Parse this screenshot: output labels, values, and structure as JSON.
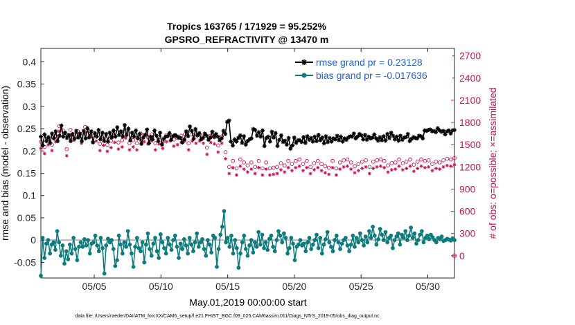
{
  "chart_data": {
    "type": "line",
    "title_line1": "Tropics 163765 / 171929 = 95.252%",
    "title_line2": "GPSRO_REFRACTIVITY @ 13470 m",
    "xlabel": "May.01,2019 00:00:00 start",
    "ylabel_left": "rmse and bias (model - observation)",
    "ylabel_right": "# of obs: o=possible; ×=assimilated",
    "footnote": "data file: /Users/raeder/DAI/ATM_forcXX/CAM6_setup/f.e21.FHIST_BGC.f09_025.CAM6assim.011/Diags_NTrS_2019-05/obs_diag_output.nc",
    "xlim": [
      1,
      32
    ],
    "ylim_left": [
      -0.085,
      0.43
    ],
    "ylim_right": [
      -300,
      2800
    ],
    "x_ticks": [
      5,
      10,
      15,
      20,
      25,
      30
    ],
    "x_tick_labels": [
      "05/05",
      "05/10",
      "05/15",
      "05/20",
      "05/25",
      "05/30"
    ],
    "y_left_ticks": [
      -0.05,
      0,
      0.05,
      0.1,
      0.15,
      0.2,
      0.25,
      0.3,
      0.35,
      0.4
    ],
    "y_left_tick_labels": [
      "-0.05",
      "0",
      "0.05",
      "0.1",
      "0.15",
      "0.2",
      "0.25",
      "0.3",
      "0.35",
      "0.4"
    ],
    "y_right_ticks": [
      0,
      300,
      600,
      900,
      1200,
      1500,
      1800,
      2100,
      2400,
      2700
    ],
    "y_right_tick_labels": [
      "0",
      "300",
      "600",
      "900",
      "1200",
      "1500",
      "1800",
      "2100",
      "2400",
      "2700"
    ],
    "zero_line": 0,
    "legend": {
      "position": "top-right",
      "entries": [
        "rmse grand pr = 0.23128",
        "bias grand pr = -0.017636"
      ]
    },
    "colors": {
      "rmse": "#000000",
      "bias": "#0b7b7b",
      "counts": "#cc1155",
      "legend_text": "#1f5fd0",
      "zero_line": "#b3b3b3"
    },
    "series": [
      {
        "name": "rmse",
        "axis": "left",
        "values": [
          0.232,
          0.212,
          0.237,
          0.222,
          0.231,
          0.218,
          0.239,
          0.228,
          0.244,
          0.222,
          0.234,
          0.257,
          0.232,
          0.241,
          0.229,
          0.236,
          0.222,
          0.238,
          0.227,
          0.245,
          0.23,
          0.239,
          0.222,
          0.245,
          0.228,
          0.251,
          0.231,
          0.244,
          0.219,
          0.24,
          0.232,
          0.247,
          0.226,
          0.241,
          0.222,
          0.238,
          0.221,
          0.241,
          0.23,
          0.246,
          0.232,
          0.253,
          0.236,
          0.244,
          0.232,
          0.258,
          0.236,
          0.25,
          0.224,
          0.241,
          0.232,
          0.246,
          0.228,
          0.238,
          0.216,
          0.23,
          0.236,
          0.248,
          0.217,
          0.232,
          0.226,
          0.246,
          0.234,
          0.222,
          0.241,
          0.214,
          0.227,
          0.232,
          0.233,
          0.24,
          0.225,
          0.233,
          0.236,
          0.233,
          0.23,
          0.229,
          0.219,
          0.226,
          0.244,
          0.233,
          0.255,
          0.245,
          0.227,
          0.249,
          0.235,
          0.24,
          0.226,
          0.229,
          0.239,
          0.234,
          0.225,
          0.23,
          0.243,
          0.232,
          0.238,
          0.232,
          0.224,
          0.228,
          0.245,
          0.238,
          0.265,
          0.268,
          0.221,
          0.212,
          0.226,
          0.221,
          0.229,
          0.235,
          0.218,
          0.233,
          0.214,
          0.222,
          0.226,
          0.228,
          0.249,
          0.247,
          0.234,
          0.242,
          0.232,
          0.246,
          0.211,
          0.229,
          0.232,
          0.221,
          0.243,
          0.23,
          0.24,
          0.211,
          0.225,
          0.235,
          0.22,
          0.223,
          0.214,
          0.229,
          0.205,
          0.212,
          0.23,
          0.218,
          0.224,
          0.224,
          0.22,
          0.231,
          0.218,
          0.233,
          0.225,
          0.229,
          0.221,
          0.232,
          0.222,
          0.236,
          0.224,
          0.23,
          0.217,
          0.233,
          0.22,
          0.229,
          0.221,
          0.228,
          0.226,
          0.234,
          0.224,
          0.232,
          0.221,
          0.228,
          0.225,
          0.23,
          0.233,
          0.232,
          0.239,
          0.228,
          0.232,
          0.238,
          0.235,
          0.226,
          0.236,
          0.225,
          0.232,
          0.228,
          0.23,
          0.237,
          0.228,
          0.223,
          0.231,
          0.224,
          0.233,
          0.223,
          0.238,
          0.229,
          0.241,
          0.234,
          0.226,
          0.232,
          0.223,
          0.234,
          0.225,
          0.23,
          0.231,
          0.238,
          0.222,
          0.227,
          0.231,
          0.229,
          0.228,
          0.234,
          0.233,
          0.228,
          0.246,
          0.245,
          0.247,
          0.248,
          0.244,
          0.245,
          0.242,
          0.251,
          0.246,
          0.243,
          0.245,
          0.237,
          0.244,
          0.246,
          0.239,
          0.246,
          0.247
        ]
      },
      {
        "name": "bias",
        "axis": "left",
        "values": [
          -0.08,
          0.005,
          -0.04,
          -0.008,
          0.0,
          -0.03,
          -0.01,
          -0.005,
          -0.022,
          0.02,
          -0.005,
          -0.035,
          -0.012,
          -0.053,
          -0.025,
          -0.043,
          -0.01,
          -0.03,
          0.005,
          -0.02,
          -0.045,
          -0.015,
          -0.005,
          -0.015,
          0.002,
          -0.012,
          0.0,
          -0.03,
          -0.008,
          -0.005,
          0.01,
          -0.012,
          -0.025,
          0.005,
          -0.018,
          -0.075,
          -0.012,
          0.003,
          -0.005,
          0.0,
          -0.02,
          -0.058,
          -0.045,
          0.01,
          -0.01,
          -0.03,
          -0.005,
          -0.015,
          0.02,
          -0.01,
          -0.03,
          -0.06,
          -0.015,
          0.005,
          -0.018,
          -0.025,
          -0.005,
          -0.05,
          -0.01,
          0.015,
          -0.02,
          -0.035,
          -0.008,
          0.005,
          -0.025,
          -0.04,
          0.013,
          -0.005,
          -0.018,
          -0.03,
          0.005,
          -0.01,
          -0.022,
          0.0,
          0.01,
          -0.015,
          -0.04,
          -0.008,
          -0.02,
          0.002,
          -0.012,
          -0.03,
          0.005,
          -0.01,
          -0.025,
          -0.005,
          0.015,
          -0.015,
          -0.005,
          0.002,
          -0.02,
          -0.035,
          0.0,
          -0.01,
          -0.028,
          0.01,
          0.005,
          -0.06,
          -0.02,
          0.012,
          0.03,
          0.065,
          -0.005,
          0.005,
          -0.015,
          0.01,
          -0.03,
          0.0,
          -0.018,
          -0.062,
          -0.03,
          -0.005,
          0.01,
          -0.02,
          -0.035,
          -0.012,
          0.0,
          -0.028,
          -0.005,
          -0.015,
          0.018,
          -0.01,
          0.012,
          -0.018,
          -0.005,
          -0.022,
          0.003,
          0.01,
          -0.015,
          -0.025,
          0.0,
          0.02,
          0.01,
          -0.005,
          0.015,
          0.005,
          -0.03,
          -0.018,
          0.005,
          -0.008,
          -0.045,
          -0.015,
          -0.01,
          0.0,
          -0.012,
          -0.008,
          -0.025,
          -0.005,
          0.005,
          -0.02,
          -0.01,
          0.0,
          0.012,
          -0.018,
          0.005,
          -0.03,
          -0.01,
          0.002,
          0.018,
          -0.005,
          -0.015,
          -0.025,
          0.0,
          0.01,
          -0.005,
          -0.02,
          -0.008,
          0.0,
          0.005,
          -0.012,
          -0.025,
          -0.01,
          0.01,
          -0.015,
          0.005,
          -0.005,
          0.015,
          0.0,
          -0.012,
          0.008,
          -0.005,
          0.02,
          0.005,
          0.03,
          0.01,
          -0.01,
          0.002,
          0.025,
          0.012,
          0.0,
          0.018,
          -0.005,
          0.005,
          0.01,
          -0.018,
          0.0,
          0.008,
          0.015,
          -0.01,
          0.012,
          0.005,
          0.02,
          0.0,
          0.01,
          0.028,
          0.005,
          0.015,
          -0.008,
          0.0,
          0.012,
          0.02,
          -0.005,
          0.005,
          0.01,
          0.002,
          0.012,
          0.006,
          0.0,
          -0.005,
          0.005,
          0.002,
          0.008,
          -0.002,
          0.0,
          0.003,
          0.001,
          -0.001,
          0.004,
          0.0
        ]
      },
      {
        "name": "possible",
        "axis": "right",
        "values": [
          1540,
          1680,
          1470,
          1630,
          1580,
          1720,
          1500,
          1660,
          1620,
          1380,
          1750,
          1560,
          1690,
          1610,
          1440,
          1590,
          1700,
          1530,
          1640,
          1570,
          1680,
          1460,
          1610,
          1530,
          1740,
          1600,
          1680,
          1550,
          1620,
          1480,
          1640,
          1570,
          1510,
          1430,
          1580,
          1620,
          1500,
          1450,
          1550,
          1590,
          1620,
          1480,
          1530,
          1600,
          1560,
          1460,
          1680,
          1570,
          1520,
          1620,
          1560,
          1640,
          1520,
          1600,
          1650,
          1460,
          1630,
          1540,
          1600,
          1570,
          1640,
          1580,
          1520,
          1660,
          1600,
          1560,
          1540,
          1590,
          1630,
          1600,
          1640,
          1550,
          1570,
          1660,
          1590,
          1700,
          1620,
          1580,
          1640,
          1560,
          1520,
          1600,
          1640,
          1570,
          1610,
          1560,
          1640,
          1590,
          1610,
          1570,
          1460,
          1580,
          1620,
          1530,
          1600,
          1550,
          1490,
          1560,
          1610,
          1370,
          1400,
          1300,
          1200,
          1420,
          1280,
          1360,
          1180,
          1280,
          1300,
          1240,
          1260,
          1320,
          1220,
          1180,
          1260,
          1320,
          1200,
          1340,
          1280,
          1220,
          1180,
          1300,
          1260,
          1330,
          1180,
          1240,
          1190,
          1280,
          1200,
          1310,
          1250,
          1180,
          1220,
          1160,
          1280,
          1190,
          1240,
          1160,
          1280,
          1210,
          1300,
          1180,
          1240,
          1200,
          1280,
          1230,
          1200,
          1150,
          1250,
          1220,
          1280,
          1190,
          1240,
          1270,
          1210,
          1300,
          1190,
          1240,
          1280,
          1220,
          1180,
          1300,
          1260,
          1210,
          1290,
          1240,
          1300,
          1180,
          1260,
          1320,
          1210,
          1280,
          1240,
          1300,
          1270,
          1230,
          1290,
          1260,
          1200,
          1310,
          1270,
          1230,
          1290,
          1260,
          1300,
          1240,
          1280,
          1270,
          1220,
          1300,
          1250,
          1290,
          1260,
          1230,
          1300,
          1280,
          1250,
          1290,
          1270,
          1240,
          1300,
          1280,
          1230,
          1290,
          1270,
          1250,
          1300,
          1260,
          1280,
          1250,
          1290,
          1270,
          1240,
          1300,
          1270,
          1280,
          1260,
          1300,
          1290,
          1260,
          1310,
          1280,
          1300,
          1290,
          1320
        ]
      },
      {
        "name": "assimilated",
        "axis": "right",
        "values": [
          1450,
          1600,
          1380,
          1560,
          1500,
          1650,
          1420,
          1580,
          1540,
          1300,
          1680,
          1470,
          1610,
          1520,
          1350,
          1500,
          1620,
          1440,
          1560,
          1480,
          1600,
          1370,
          1520,
          1440,
          1660,
          1510,
          1590,
          1460,
          1540,
          1390,
          1550,
          1480,
          1420,
          1340,
          1490,
          1530,
          1410,
          1360,
          1460,
          1500,
          1530,
          1390,
          1440,
          1510,
          1470,
          1370,
          1590,
          1480,
          1430,
          1530,
          1470,
          1550,
          1430,
          1510,
          1560,
          1370,
          1540,
          1450,
          1510,
          1480,
          1550,
          1490,
          1430,
          1570,
          1510,
          1470,
          1450,
          1500,
          1540,
          1510,
          1550,
          1460,
          1480,
          1570,
          1500,
          1610,
          1530,
          1490,
          1550,
          1470,
          1430,
          1510,
          1550,
          1480,
          1520,
          1470,
          1550,
          1500,
          1520,
          1480,
          1370,
          1490,
          1530,
          1440,
          1510,
          1460,
          1400,
          1470,
          1520,
          1280,
          1310,
          1210,
          1110,
          1330,
          1190,
          1270,
          1090,
          1190,
          1210,
          1150,
          1170,
          1230,
          1130,
          1090,
          1170,
          1230,
          1110,
          1250,
          1190,
          1130,
          1090,
          1210,
          1170,
          1240,
          1090,
          1150,
          1100,
          1190,
          1110,
          1220,
          1160,
          1090,
          1130,
          1070,
          1190,
          1100,
          1150,
          1070,
          1190,
          1120,
          1210,
          1090,
          1150,
          1110,
          1190,
          1140,
          1110,
          1060,
          1160,
          1130,
          1190,
          1100,
          1150,
          1180,
          1120,
          1210,
          1100,
          1150,
          1190,
          1130,
          1090,
          1210,
          1170,
          1120,
          1200,
          1150,
          1210,
          1090,
          1170,
          1230,
          1120,
          1190,
          1150,
          1210,
          1180,
          1140,
          1200,
          1170,
          1110,
          1220,
          1180,
          1140,
          1200,
          1170,
          1210,
          1150,
          1190,
          1180,
          1130,
          1210,
          1160,
          1200,
          1170,
          1140,
          1210,
          1190,
          1160,
          1200,
          1180,
          1150,
          1210,
          1190,
          1140,
          1200,
          1180,
          1160,
          1210,
          1170,
          1190,
          1160,
          1200,
          1180,
          1150,
          1210,
          1180,
          1190,
          1170,
          1210,
          1200,
          1170,
          1220,
          1190,
          1210,
          1200,
          1230
        ]
      }
    ]
  }
}
